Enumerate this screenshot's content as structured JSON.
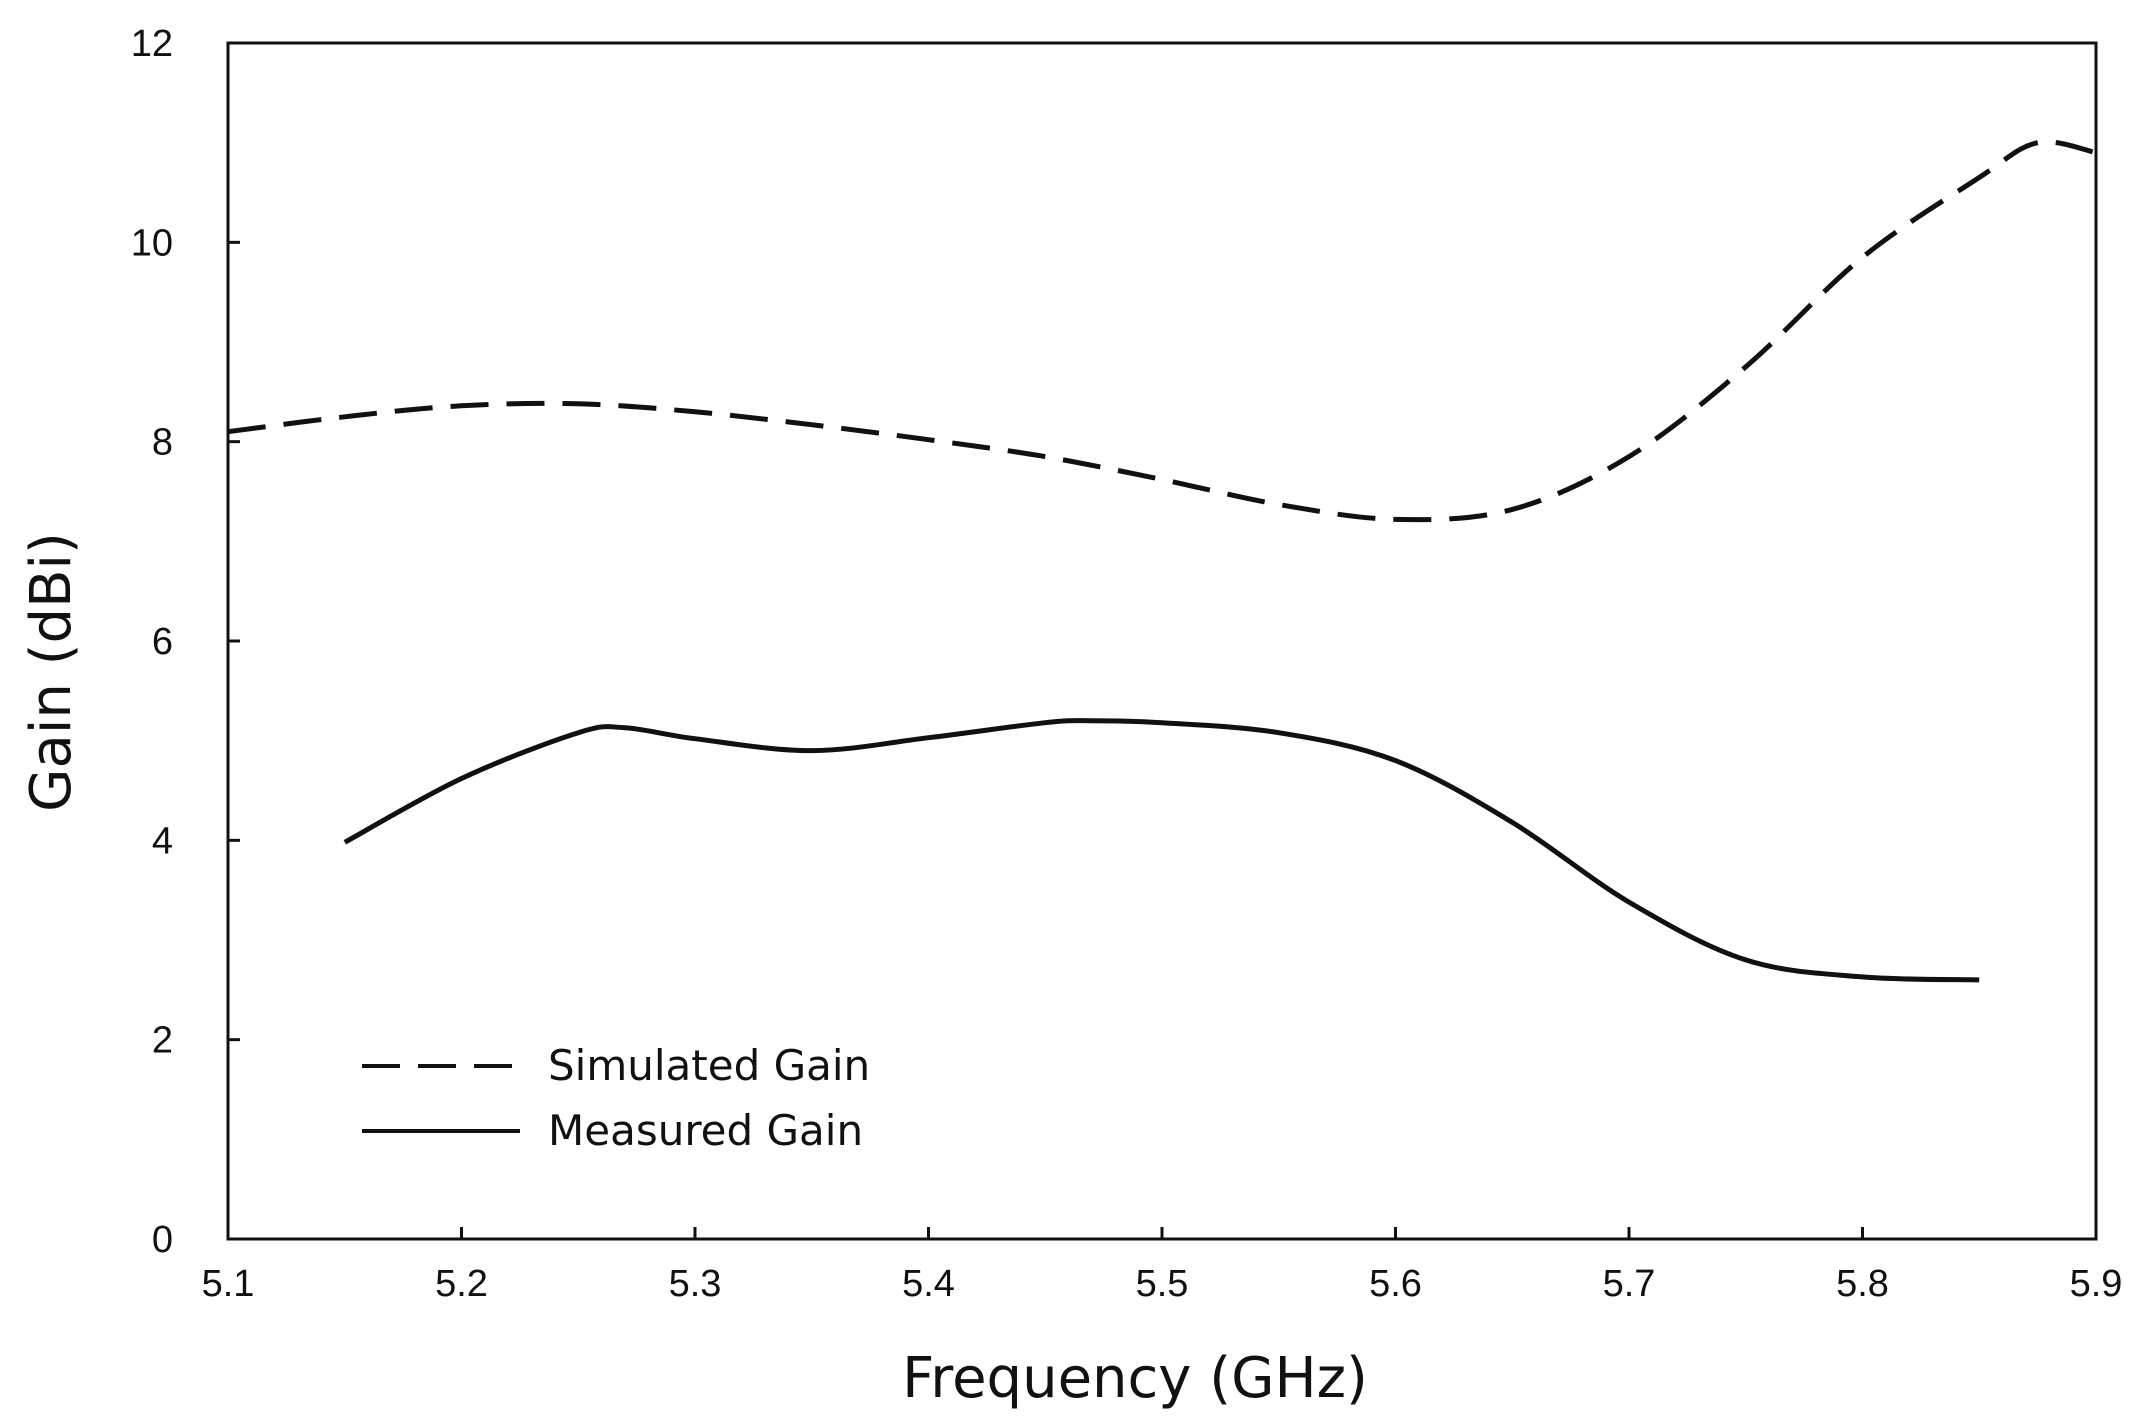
{
  "chart_data": {
    "type": "line",
    "title": "",
    "xlabel": "Frequency (GHz)",
    "ylabel": "Gain (dBi)",
    "xlim": [
      5.1,
      5.9
    ],
    "ylim": [
      0,
      12
    ],
    "xticks": [
      "5.1",
      "5.2",
      "5.3",
      "5.4",
      "5.5",
      "5.6",
      "5.7",
      "5.8",
      "5.9"
    ],
    "yticks": [
      "0",
      "2",
      "4",
      "6",
      "8",
      "10",
      "12"
    ],
    "grid": false,
    "legend_position": "bottom-left",
    "colors": {
      "line": "#111111",
      "axis": "#111111",
      "background": "#ffffff"
    },
    "series": [
      {
        "name": "Simulated Gain",
        "style": "dashed",
        "x": [
          5.1,
          5.15,
          5.2,
          5.25,
          5.3,
          5.35,
          5.4,
          5.45,
          5.5,
          5.55,
          5.6,
          5.65,
          5.7,
          5.75,
          5.8,
          5.85,
          5.875,
          5.9
        ],
        "y": [
          8.1,
          8.25,
          8.36,
          8.38,
          8.3,
          8.17,
          8.02,
          7.85,
          7.62,
          7.37,
          7.22,
          7.32,
          7.85,
          8.75,
          9.85,
          10.65,
          11.0,
          10.9
        ]
      },
      {
        "name": "Measured Gain",
        "style": "solid",
        "x": [
          5.15,
          5.2,
          5.25,
          5.27,
          5.3,
          5.35,
          5.4,
          5.45,
          5.47,
          5.5,
          5.55,
          5.6,
          5.65,
          5.7,
          5.75,
          5.8,
          5.85
        ],
        "y": [
          3.98,
          4.62,
          5.08,
          5.13,
          5.02,
          4.9,
          5.03,
          5.18,
          5.2,
          5.18,
          5.08,
          4.8,
          4.18,
          3.38,
          2.8,
          2.63,
          2.6
        ]
      }
    ]
  }
}
